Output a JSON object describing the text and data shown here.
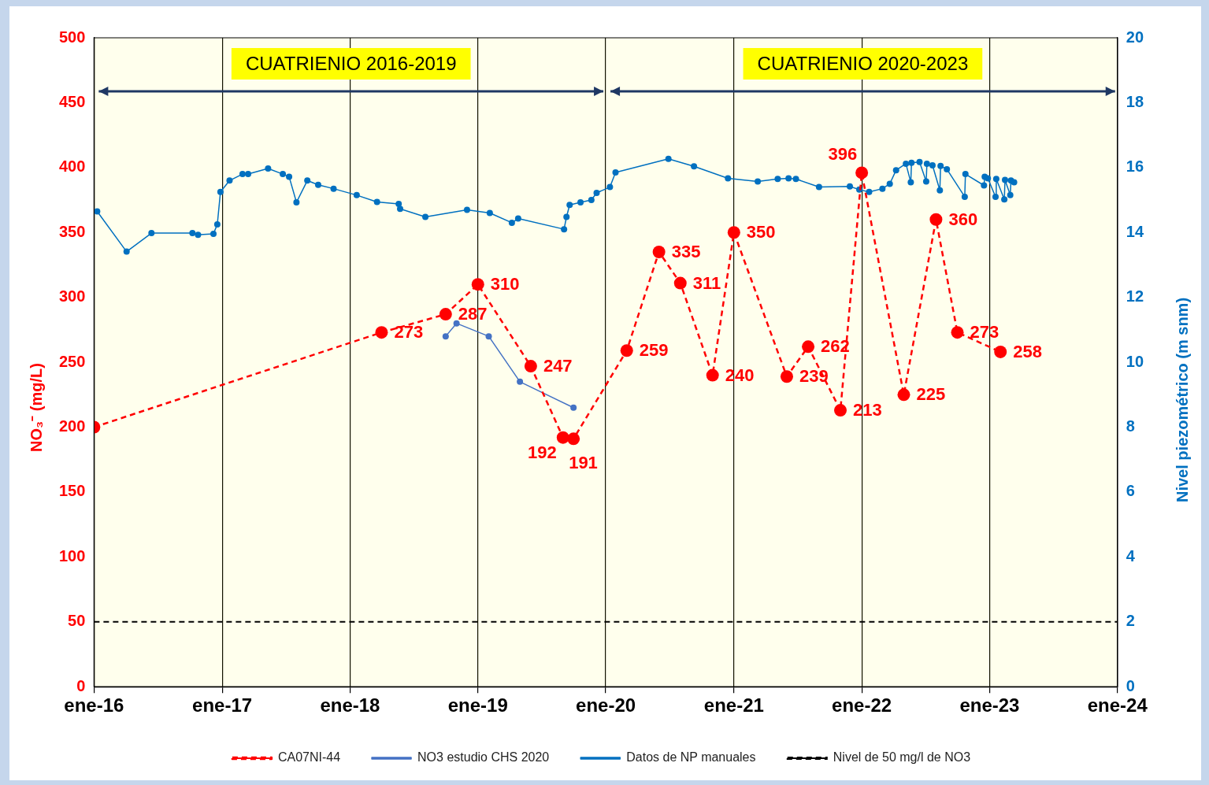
{
  "chart_data": {
    "type": "line",
    "ylabel": "NO₃⁻ (mg/L)",
    "y2label": "Nivel piezométrico (m snm)",
    "xlim": [
      "2016-01",
      "2024-01"
    ],
    "xticks": [
      {
        "value": "2016-01",
        "label": "ene-16"
      },
      {
        "value": "2017-01",
        "label": "ene-17"
      },
      {
        "value": "2018-01",
        "label": "ene-18"
      },
      {
        "value": "2019-01",
        "label": "ene-19"
      },
      {
        "value": "2020-01",
        "label": "ene-20"
      },
      {
        "value": "2021-01",
        "label": "ene-21"
      },
      {
        "value": "2022-01",
        "label": "ene-22"
      },
      {
        "value": "2023-01",
        "label": "ene-23"
      },
      {
        "value": "2024-01",
        "label": "ene-24"
      }
    ],
    "ylim": [
      0,
      500
    ],
    "yticks": [
      0,
      50,
      100,
      150,
      200,
      250,
      300,
      350,
      400,
      450,
      500
    ],
    "y2lim": [
      0,
      20
    ],
    "y2ticks": [
      0,
      2,
      4,
      6,
      8,
      10,
      12,
      14,
      16,
      18,
      20
    ],
    "grid": "x",
    "legend": "bottom",
    "ref_lines": [
      {
        "axis": "y",
        "value": 50,
        "label": "Nivel de 50 mg/l de NO3",
        "color": "#000000",
        "line_style": "dashed"
      }
    ],
    "bands": [
      {
        "axis": "x",
        "from": "2016-01",
        "to": "2020-01",
        "label": "CUATRIENIO 2016-2019",
        "color": "#ffff00"
      },
      {
        "axis": "x",
        "from": "2020-01",
        "to": "2024-01",
        "label": "CUATRIENIO 2020-2023",
        "color": "#ffff00"
      }
    ],
    "series": [
      {
        "name": "CA07NI-44",
        "color": "#ff0000",
        "line_style": "dashed",
        "marker": "circle",
        "x": [
          "2016-01",
          "2018-04",
          "2018-10",
          "2019-01",
          "2019-06",
          "2019-09",
          "2019-10",
          "2020-03",
          "2020-06",
          "2020-08",
          "2020-11",
          "2021-01",
          "2021-06",
          "2021-08",
          "2021-11",
          "2022-01",
          "2022-05",
          "2022-08",
          "2022-10",
          "2023-02"
        ],
        "values": [
          200,
          273,
          287,
          310,
          247,
          192,
          191,
          259,
          335,
          311,
          240,
          350,
          239,
          262,
          213,
          396,
          225,
          360,
          273,
          258
        ],
        "value_labels": [
          null,
          "273",
          "287",
          "310",
          "247",
          "192",
          "191",
          "259",
          "335",
          "311",
          "240",
          "350",
          "239",
          "262",
          "213",
          "396",
          "225",
          "360",
          "273",
          "258"
        ]
      },
      {
        "name": "NO3 estudio CHS 2020",
        "color": "#4472c4",
        "line_style": "solid",
        "marker": "circle",
        "x": [
          "2018-10",
          "2018-11",
          "2019-02",
          "2019-05",
          "2019-10"
        ],
        "values": [
          270,
          280,
          270,
          235,
          215
        ]
      },
      {
        "name": "Datos de NP manuales",
        "color": "#0070c0",
        "line_style": "solid",
        "marker": "circle",
        "axis": "y2",
        "x": [
          "2016-01-10",
          "2016-04-03",
          "2016-06-13",
          "2016-10-08",
          "2016-10-24",
          "2016-12-07",
          "2016-12-18",
          "2016-12-27",
          "2017-01-22",
          "2017-02-28",
          "2017-03-16",
          "2017-05-12",
          "2017-06-23",
          "2017-07-11",
          "2017-08-01",
          "2017-09-01",
          "2017-10-02",
          "2017-11-15",
          "2018-01-20",
          "2018-03-19",
          "2018-05-20",
          "2018-05-24",
          "2018-08-04",
          "2018-12-01",
          "2019-02-04",
          "2019-04-08",
          "2019-04-26",
          "2019-09-04",
          "2019-09-11",
          "2019-09-20",
          "2019-10-21",
          "2019-11-21",
          "2019-12-06",
          "2020-01-13",
          "2020-01-29",
          "2020-06-28",
          "2020-09-09",
          "2020-12-15",
          "2021-03-10",
          "2021-05-06",
          "2021-06-06",
          "2021-06-27",
          "2021-09-01",
          "2021-11-28",
          "2021-12-25",
          "2022-01-22",
          "2022-03-01",
          "2022-03-22",
          "2022-04-09",
          "2022-05-07",
          "2022-05-21",
          "2022-05-23",
          "2022-06-15",
          "2022-07-04",
          "2022-07-06",
          "2022-07-22",
          "2022-08-12",
          "2022-08-14",
          "2022-09-01",
          "2022-10-22",
          "2022-10-24",
          "2022-12-16",
          "2022-12-18",
          "2022-12-27",
          "2023-01-18",
          "2023-01-20",
          "2023-02-12",
          "2023-02-14",
          "2023-03-01",
          "2023-03-03",
          "2023-03-12"
        ],
        "values": [
          14.65,
          13.41,
          13.98,
          13.98,
          13.93,
          13.96,
          14.25,
          15.25,
          15.6,
          15.8,
          15.8,
          15.97,
          15.8,
          15.72,
          14.93,
          15.6,
          15.47,
          15.35,
          15.15,
          14.94,
          14.88,
          14.73,
          14.48,
          14.7,
          14.6,
          14.3,
          14.43,
          14.1,
          14.48,
          14.85,
          14.93,
          15.0,
          15.22,
          15.4,
          15.85,
          16.27,
          16.04,
          15.67,
          15.57,
          15.65,
          15.67,
          15.65,
          15.4,
          15.42,
          15.32,
          15.25,
          15.35,
          15.5,
          15.92,
          16.12,
          15.55,
          16.15,
          16.17,
          15.57,
          16.12,
          16.07,
          15.3,
          16.05,
          15.95,
          15.1,
          15.8,
          15.45,
          15.72,
          15.67,
          15.1,
          15.65,
          15.02,
          15.62,
          15.15,
          15.6,
          15.55
        ]
      }
    ]
  }
}
